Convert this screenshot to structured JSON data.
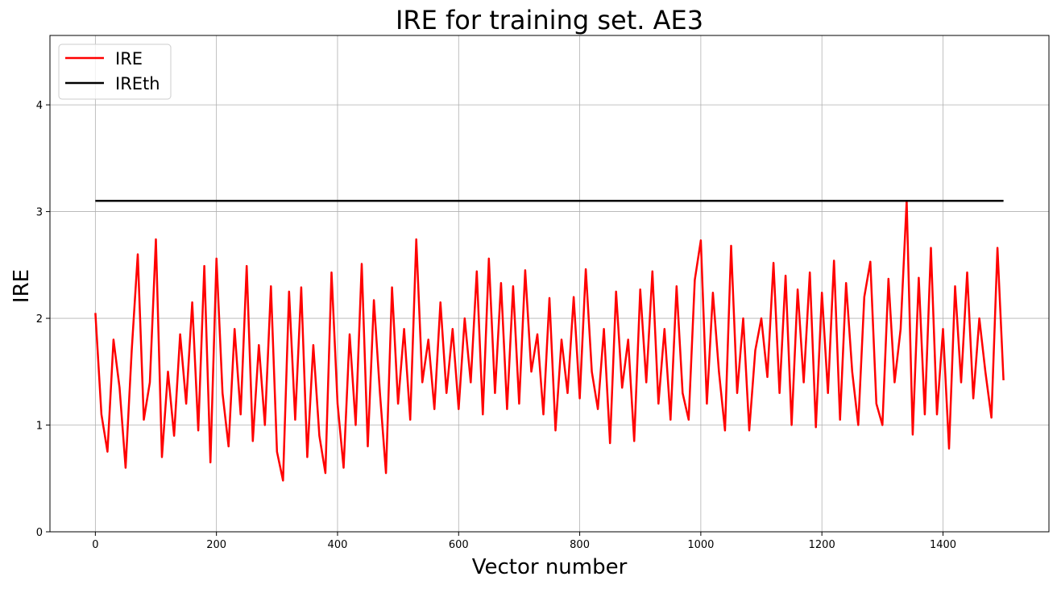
{
  "chart_data": {
    "type": "line",
    "title": "IRE for training set. AE3",
    "xlabel": "Vector number",
    "ylabel": "IRE",
    "xlim": [
      -75,
      1575
    ],
    "ylim": [
      0,
      4.65
    ],
    "xticks": [
      0,
      200,
      400,
      600,
      800,
      1000,
      1200,
      1400
    ],
    "yticks": [
      0,
      1,
      2,
      3,
      4
    ],
    "grid": true,
    "legend_placement": "upper-left",
    "series": [
      {
        "name": "IRE",
        "color": "#ff0000",
        "x": [
          0,
          10,
          20,
          30,
          40,
          50,
          60,
          70,
          80,
          90,
          100,
          110,
          120,
          130,
          140,
          150,
          160,
          170,
          180,
          190,
          200,
          210,
          220,
          230,
          240,
          250,
          260,
          270,
          280,
          290,
          300,
          310,
          320,
          330,
          340,
          350,
          360,
          370,
          380,
          390,
          400,
          410,
          420,
          430,
          440,
          450,
          460,
          470,
          480,
          490,
          500,
          510,
          520,
          530,
          540,
          550,
          560,
          570,
          580,
          590,
          600,
          610,
          620,
          630,
          640,
          650,
          660,
          670,
          680,
          690,
          700,
          710,
          720,
          730,
          740,
          750,
          760,
          770,
          780,
          790,
          800,
          810,
          820,
          830,
          840,
          850,
          860,
          870,
          880,
          890,
          900,
          910,
          920,
          930,
          940,
          950,
          960,
          970,
          980,
          990,
          1000,
          1010,
          1020,
          1030,
          1040,
          1050,
          1060,
          1070,
          1080,
          1090,
          1100,
          1110,
          1120,
          1130,
          1140,
          1150,
          1160,
          1170,
          1180,
          1190,
          1200,
          1210,
          1220,
          1230,
          1240,
          1250,
          1260,
          1270,
          1280,
          1290,
          1300,
          1310,
          1320,
          1330,
          1340,
          1350,
          1360,
          1370,
          1380,
          1390,
          1400,
          1410,
          1420,
          1430,
          1440,
          1450,
          1460,
          1470,
          1480,
          1490,
          1500
        ],
        "y": [
          2.05,
          1.1,
          0.75,
          1.8,
          1.35,
          0.6,
          1.7,
          2.6,
          1.05,
          1.4,
          2.74,
          0.7,
          1.5,
          0.9,
          1.85,
          1.2,
          2.15,
          0.95,
          2.49,
          0.65,
          2.56,
          1.3,
          0.8,
          1.9,
          1.1,
          2.49,
          0.85,
          1.75,
          1.0,
          2.3,
          0.75,
          0.48,
          2.25,
          1.05,
          2.29,
          0.7,
          1.75,
          0.9,
          0.55,
          2.43,
          1.2,
          0.6,
          1.85,
          1.0,
          2.51,
          0.8,
          2.17,
          1.3,
          0.55,
          2.29,
          1.2,
          1.9,
          1.05,
          2.74,
          1.4,
          1.8,
          1.15,
          2.15,
          1.3,
          1.9,
          1.15,
          2.0,
          1.4,
          2.44,
          1.1,
          2.56,
          1.3,
          2.33,
          1.15,
          2.3,
          1.2,
          2.45,
          1.5,
          1.85,
          1.1,
          2.19,
          0.95,
          1.8,
          1.3,
          2.2,
          1.25,
          2.46,
          1.5,
          1.15,
          1.9,
          0.83,
          2.25,
          1.35,
          1.8,
          0.85,
          2.27,
          1.4,
          2.44,
          1.2,
          1.9,
          1.05,
          2.3,
          1.3,
          1.05,
          2.36,
          2.73,
          1.2,
          2.24,
          1.5,
          0.95,
          2.68,
          1.3,
          2.0,
          0.95,
          1.7,
          2.0,
          1.45,
          2.52,
          1.3,
          2.4,
          1.0,
          2.27,
          1.4,
          2.43,
          0.98,
          2.24,
          1.3,
          2.54,
          1.05,
          2.33,
          1.5,
          1.0,
          2.2,
          2.53,
          1.2,
          1.0,
          2.37,
          1.4,
          1.9,
          3.1,
          0.91,
          2.38,
          1.1,
          2.66,
          1.1,
          1.9,
          0.78,
          2.3,
          1.4,
          2.43,
          1.25,
          2.0,
          1.5,
          1.07,
          2.66,
          1.42
        ]
      },
      {
        "name": "IREth",
        "color": "#000000",
        "x": [
          0,
          1500
        ],
        "y": [
          3.1,
          3.1
        ]
      }
    ]
  }
}
